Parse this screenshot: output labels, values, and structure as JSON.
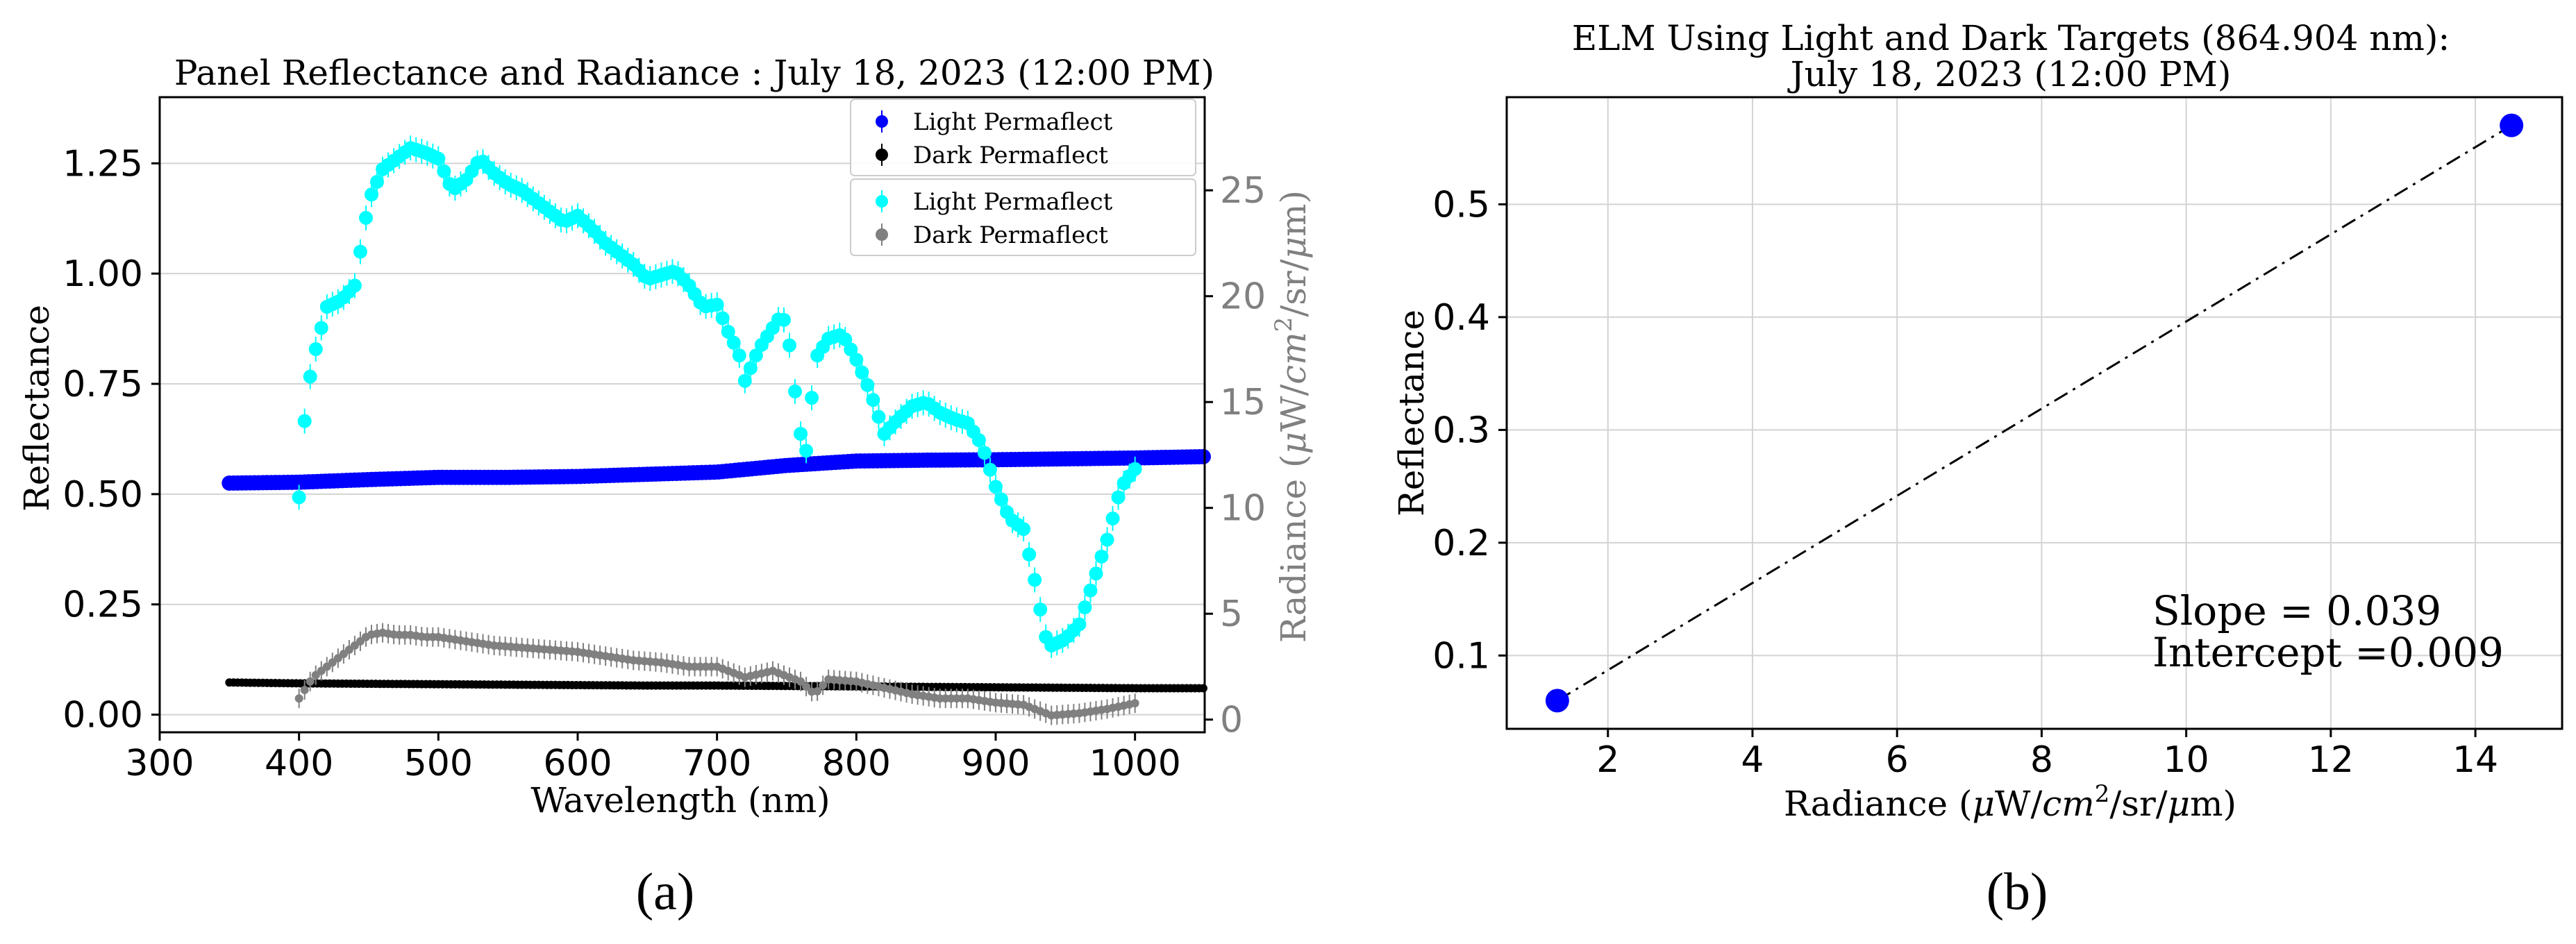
{
  "colors": {
    "light_reflectance": "#0000ff",
    "dark_reflectance": "#000000",
    "light_radiance": "#00ffff",
    "dark_radiance": "#808080",
    "grid": "#d3d3d3",
    "axis": "#000000",
    "right_axis_text": "#808080"
  },
  "chart_data": [
    {
      "id": "a",
      "type": "scatter",
      "title": "Panel Reflectance and Radiance : July 18, 2023 (12:00 PM)",
      "caption": "(a)",
      "xlabel": "Wavelength (nm)",
      "ylabel": "Reflectance",
      "y2label_prefix": "Radiance (",
      "y2label_mu1": "μ",
      "y2label_mid": "W/",
      "y2label_cm": "cm",
      "y2label_exp": "2",
      "y2label_sr": "/sr/",
      "y2label_mu2": "μ",
      "y2label_end": "m)",
      "xlim": [
        300,
        1050
      ],
      "ylim": [
        -0.04,
        1.4
      ],
      "y2lim": [
        -0.6,
        29.4
      ],
      "xticks": [
        300,
        400,
        500,
        600,
        700,
        800,
        900,
        1000
      ],
      "xtick_labels": [
        "300",
        "400",
        "500",
        "600",
        "700",
        "800",
        "900",
        "1000"
      ],
      "yticks": [
        0.0,
        0.25,
        0.5,
        0.75,
        1.0,
        1.25
      ],
      "ytick_labels": [
        "0.00",
        "0.25",
        "0.50",
        "0.75",
        "1.00",
        "1.25"
      ],
      "y2ticks": [
        0,
        5,
        10,
        15,
        20,
        25
      ],
      "y2tick_labels": [
        "0",
        "5",
        "10",
        "15",
        "20",
        "25"
      ],
      "legend_placement": "top-right",
      "legend": [
        {
          "label": "Light Permaflect",
          "series": "light_reflectance"
        },
        {
          "label": "Dark Permaflect",
          "series": "dark_reflectance"
        },
        {
          "label": "Light Permaflect",
          "series": "light_radiance"
        },
        {
          "label": "Dark Permaflect",
          "series": "dark_radiance"
        }
      ],
      "series": [
        {
          "name": "Light Permaflect",
          "key": "light_reflectance",
          "axis": "left",
          "x_range": [
            350,
            1050
          ],
          "x": [
            350,
            400,
            450,
            500,
            550,
            600,
            650,
            700,
            750,
            800,
            850,
            900,
            950,
            1000,
            1050
          ],
          "values": [
            0.525,
            0.527,
            0.533,
            0.538,
            0.538,
            0.54,
            0.545,
            0.55,
            0.565,
            0.575,
            0.577,
            0.578,
            0.58,
            0.582,
            0.585
          ]
        },
        {
          "name": "Dark Permaflect",
          "key": "dark_reflectance",
          "axis": "left",
          "x_range": [
            350,
            1050
          ],
          "x": [
            350,
            400,
            450,
            500,
            550,
            600,
            650,
            700,
            750,
            800,
            850,
            900,
            950,
            1000,
            1050
          ],
          "values": [
            0.073,
            0.071,
            0.07,
            0.069,
            0.068,
            0.067,
            0.066,
            0.066,
            0.065,
            0.064,
            0.063,
            0.062,
            0.061,
            0.06,
            0.06
          ]
        },
        {
          "name": "Light Permaflect",
          "key": "light_radiance",
          "axis": "right",
          "x_range": [
            400,
            1002
          ],
          "x": [
            400,
            405,
            410,
            420,
            430,
            440,
            450,
            460,
            470,
            480,
            490,
            500,
            510,
            520,
            530,
            540,
            550,
            560,
            570,
            580,
            590,
            600,
            610,
            620,
            630,
            640,
            650,
            660,
            670,
            680,
            690,
            700,
            710,
            715,
            720,
            730,
            740,
            745,
            750,
            755,
            760,
            765,
            770,
            780,
            790,
            800,
            810,
            820,
            830,
            840,
            850,
            860,
            870,
            880,
            890,
            900,
            910,
            920,
            930,
            935,
            940,
            950,
            960,
            970,
            980,
            990,
            1002
          ],
          "values": [
            10.5,
            15.0,
            17.0,
            19.5,
            19.8,
            20.5,
            24.5,
            26.0,
            26.5,
            27.0,
            26.8,
            26.5,
            25.0,
            25.5,
            26.5,
            25.8,
            25.3,
            25.0,
            24.5,
            24.0,
            23.5,
            23.8,
            23.2,
            22.5,
            22.0,
            21.5,
            20.8,
            21.0,
            21.2,
            20.5,
            19.5,
            19.6,
            18.0,
            17.5,
            16.0,
            17.5,
            18.5,
            19.0,
            18.8,
            16.0,
            13.5,
            12.5,
            17.0,
            18.0,
            18.2,
            17.0,
            15.5,
            13.5,
            14.2,
            14.8,
            15.0,
            14.5,
            14.2,
            14.0,
            13.0,
            11.0,
            9.5,
            9.0,
            6.0,
            4.0,
            3.5,
            3.8,
            4.5,
            6.5,
            8.5,
            11.0,
            12.0
          ]
        },
        {
          "name": "Dark Permaflect",
          "key": "dark_radiance",
          "axis": "right",
          "x_range": [
            400,
            1002
          ],
          "x": [
            400,
            410,
            420,
            430,
            440,
            450,
            460,
            470,
            480,
            490,
            500,
            520,
            540,
            560,
            580,
            600,
            620,
            640,
            660,
            680,
            700,
            720,
            740,
            760,
            770,
            780,
            800,
            820,
            840,
            860,
            880,
            900,
            920,
            940,
            960,
            980,
            1002
          ],
          "values": [
            1.0,
            2.0,
            2.5,
            3.0,
            3.5,
            4.0,
            4.1,
            4.0,
            4.0,
            3.9,
            3.9,
            3.7,
            3.5,
            3.4,
            3.3,
            3.2,
            3.0,
            2.8,
            2.7,
            2.5,
            2.5,
            2.0,
            2.3,
            1.8,
            1.2,
            1.9,
            1.8,
            1.5,
            1.2,
            1.0,
            1.0,
            0.8,
            0.7,
            0.2,
            0.3,
            0.5,
            0.8
          ]
        }
      ]
    },
    {
      "id": "b",
      "type": "scatter",
      "title_line1": "ELM Using Light and Dark Targets (864.904 nm):",
      "title_line2": "July 18, 2023 (12:00 PM)",
      "caption": "(b)",
      "xlabel_prefix": "Radiance (",
      "xlabel_mu1": "μ",
      "xlabel_mid": "W/",
      "xlabel_cm": "cm",
      "xlabel_exp": "2",
      "xlabel_sr": "/sr/",
      "xlabel_mu2": "μ",
      "xlabel_end": "m)",
      "ylabel": "Reflectance",
      "xlim": [
        0.6,
        15.2
      ],
      "ylim": [
        0.035,
        0.595
      ],
      "xticks": [
        2,
        4,
        6,
        8,
        10,
        12,
        14
      ],
      "xtick_labels": [
        "2",
        "4",
        "6",
        "8",
        "10",
        "12",
        "14"
      ],
      "yticks": [
        0.1,
        0.2,
        0.3,
        0.4,
        0.5
      ],
      "ytick_labels": [
        "0.1",
        "0.2",
        "0.3",
        "0.4",
        "0.5"
      ],
      "grid": true,
      "points": [
        {
          "x": 1.3,
          "y": 0.06
        },
        {
          "x": 14.5,
          "y": 0.57
        }
      ],
      "fit_line": {
        "x": [
          1.3,
          14.5
        ],
        "y": [
          0.06,
          0.57
        ],
        "style": "dashdot"
      },
      "annotation_line1": "Slope = 0.039",
      "annotation_line2": "Intercept =0.009"
    }
  ]
}
